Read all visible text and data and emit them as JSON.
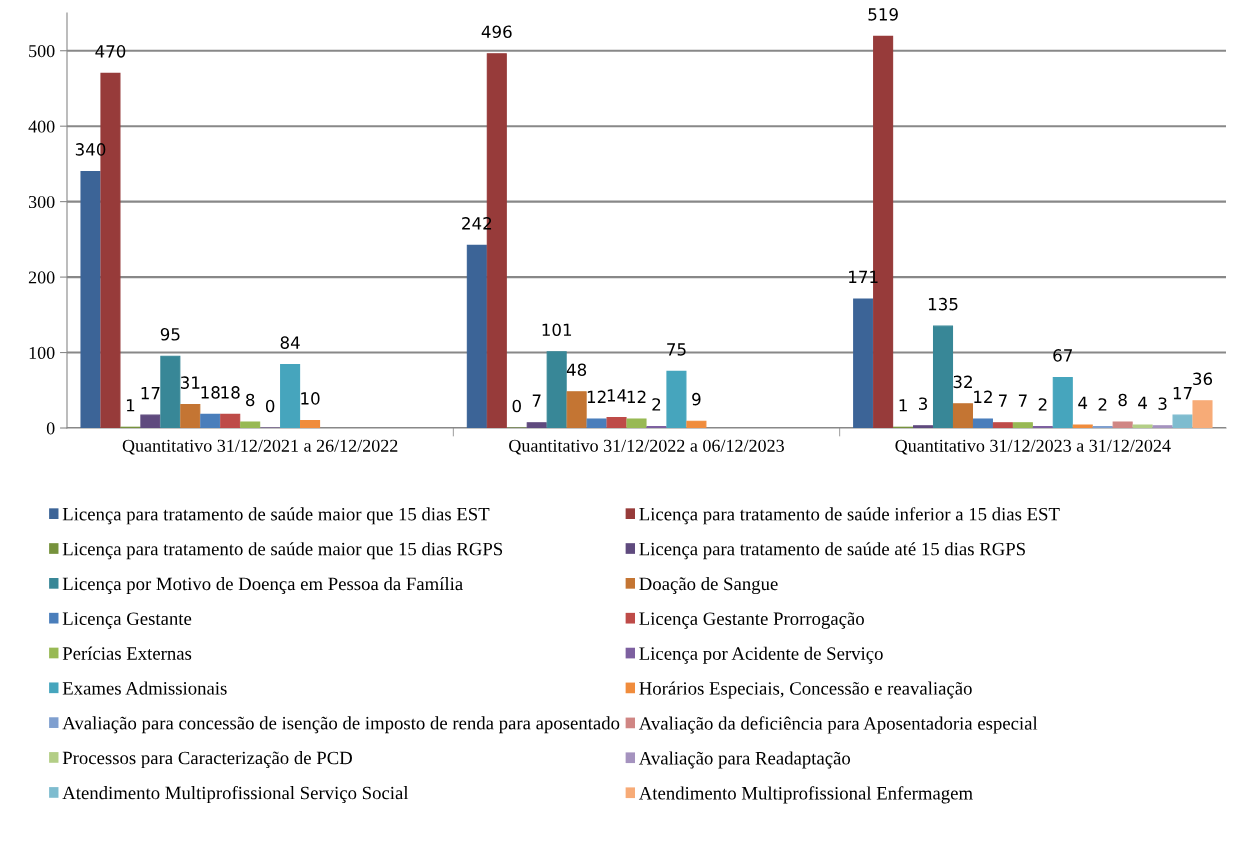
{
  "chart_data": {
    "type": "bar",
    "categories": [
      "Quantitativo 31/12/2021 a 26/12/2022",
      "Quantitativo 31/12/2022 a 06/12/2023",
      "Quantitativo 31/12/2023 a 31/12/2024"
    ],
    "ylim": [
      0,
      550
    ],
    "yticks": [
      0,
      100,
      200,
      300,
      400,
      500
    ],
    "grid": "y",
    "legend": "bottom",
    "data_labels": true,
    "series": [
      {
        "name": "Licença para tratamento de saúde maior que 15 dias EST",
        "color": "#3c6497",
        "values": [
          340,
          242,
          171
        ]
      },
      {
        "name": "Licença para tratamento de saúde inferior a 15 dias EST",
        "color": "#973b3a",
        "values": [
          470,
          496,
          519
        ]
      },
      {
        "name": "Licença para tratamento de saúde maior que 15 dias RGPS",
        "color": "#76923c",
        "values": [
          1,
          0,
          1
        ]
      },
      {
        "name": "Licença para tratamento de saúde até 15 dias RGPS",
        "color": "#5f4a7e",
        "values": [
          17,
          7,
          3
        ]
      },
      {
        "name": "Licença por Motivo de Doença em Pessoa da Família",
        "color": "#388797",
        "values": [
          95,
          101,
          135
        ]
      },
      {
        "name": "Doação de Sangue",
        "color": "#c47533",
        "values": [
          31,
          48,
          32
        ]
      },
      {
        "name": "Licença Gestante",
        "color": "#4a7ebb",
        "values": [
          18,
          12,
          12
        ]
      },
      {
        "name": "Licença Gestante Prorrogação",
        "color": "#be4b48",
        "values": [
          18,
          14,
          7
        ]
      },
      {
        "name": "Perícias Externas",
        "color": "#98b954",
        "values": [
          8,
          12,
          7
        ]
      },
      {
        "name": "Licença por Acidente de Serviço",
        "color": "#7d60a0",
        "values": [
          0,
          2,
          2
        ]
      },
      {
        "name": "Exames Admissionais",
        "color": "#46a5bd",
        "values": [
          84,
          75,
          67
        ]
      },
      {
        "name": "Horários Especiais, Concessão e reavaliação",
        "color": "#f08c3c",
        "values": [
          10,
          9,
          4
        ]
      },
      {
        "name": "Avaliação para concessão de isenção de imposto de renda para aposentado",
        "color": "#7f9fcf",
        "values": [
          null,
          null,
          2
        ]
      },
      {
        "name": "Avaliação da deficiência para Aposentadoria especial",
        "color": "#d08684",
        "values": [
          null,
          null,
          8
        ]
      },
      {
        "name": "Processos para Caracterização de PCD",
        "color": "#b3ce86",
        "values": [
          null,
          null,
          4
        ]
      },
      {
        "name": "Avaliação para Readaptação",
        "color": "#a593bf",
        "values": [
          null,
          null,
          3
        ]
      },
      {
        "name": "Atendimento Multiprofissional Serviço Social",
        "color": "#7ebccf",
        "values": [
          null,
          null,
          17
        ]
      },
      {
        "name": "Atendimento Multiprofissional Enfermagem",
        "color": "#f7ab77",
        "values": [
          null,
          null,
          36
        ]
      }
    ]
  }
}
